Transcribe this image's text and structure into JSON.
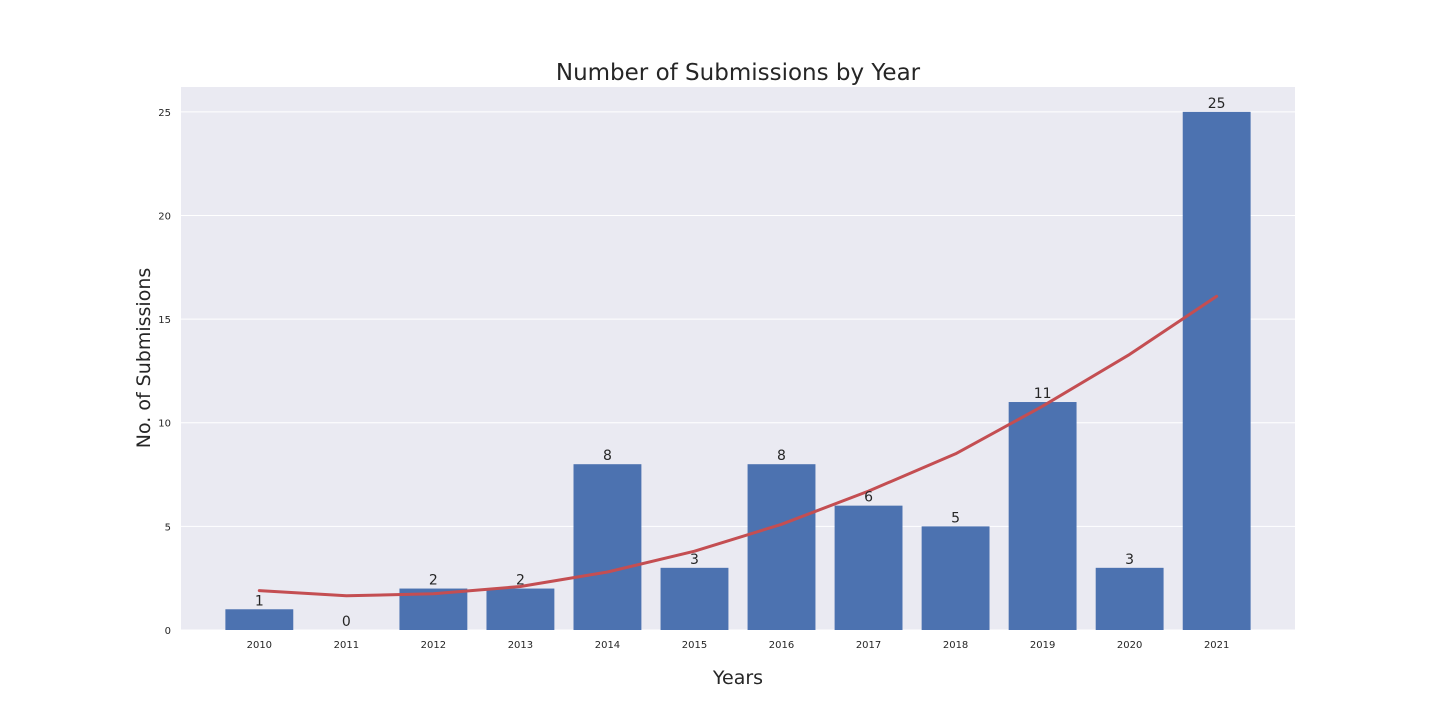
{
  "chart_data": {
    "type": "bar",
    "title": "Number of Submissions by Year",
    "xlabel": "Years",
    "ylabel": "No. of Submissions",
    "categories": [
      "2010",
      "2011",
      "2012",
      "2013",
      "2014",
      "2015",
      "2016",
      "2017",
      "2018",
      "2019",
      "2020",
      "2021"
    ],
    "series": [
      {
        "type": "bar",
        "values": [
          1,
          0,
          2,
          2,
          8,
          3,
          8,
          6,
          5,
          11,
          3,
          25
        ],
        "color": "#4c72b0"
      },
      {
        "type": "line",
        "values": [
          1.9,
          1.65,
          1.75,
          2.1,
          2.8,
          3.8,
          5.1,
          6.7,
          8.5,
          10.8,
          13.3,
          16.1
        ],
        "color": "#c44e52"
      }
    ],
    "ylim": [
      0,
      26.2
    ],
    "yticks": [
      0,
      5,
      10,
      15,
      20,
      25
    ],
    "grid": true,
    "background": "#eaeaf2"
  }
}
